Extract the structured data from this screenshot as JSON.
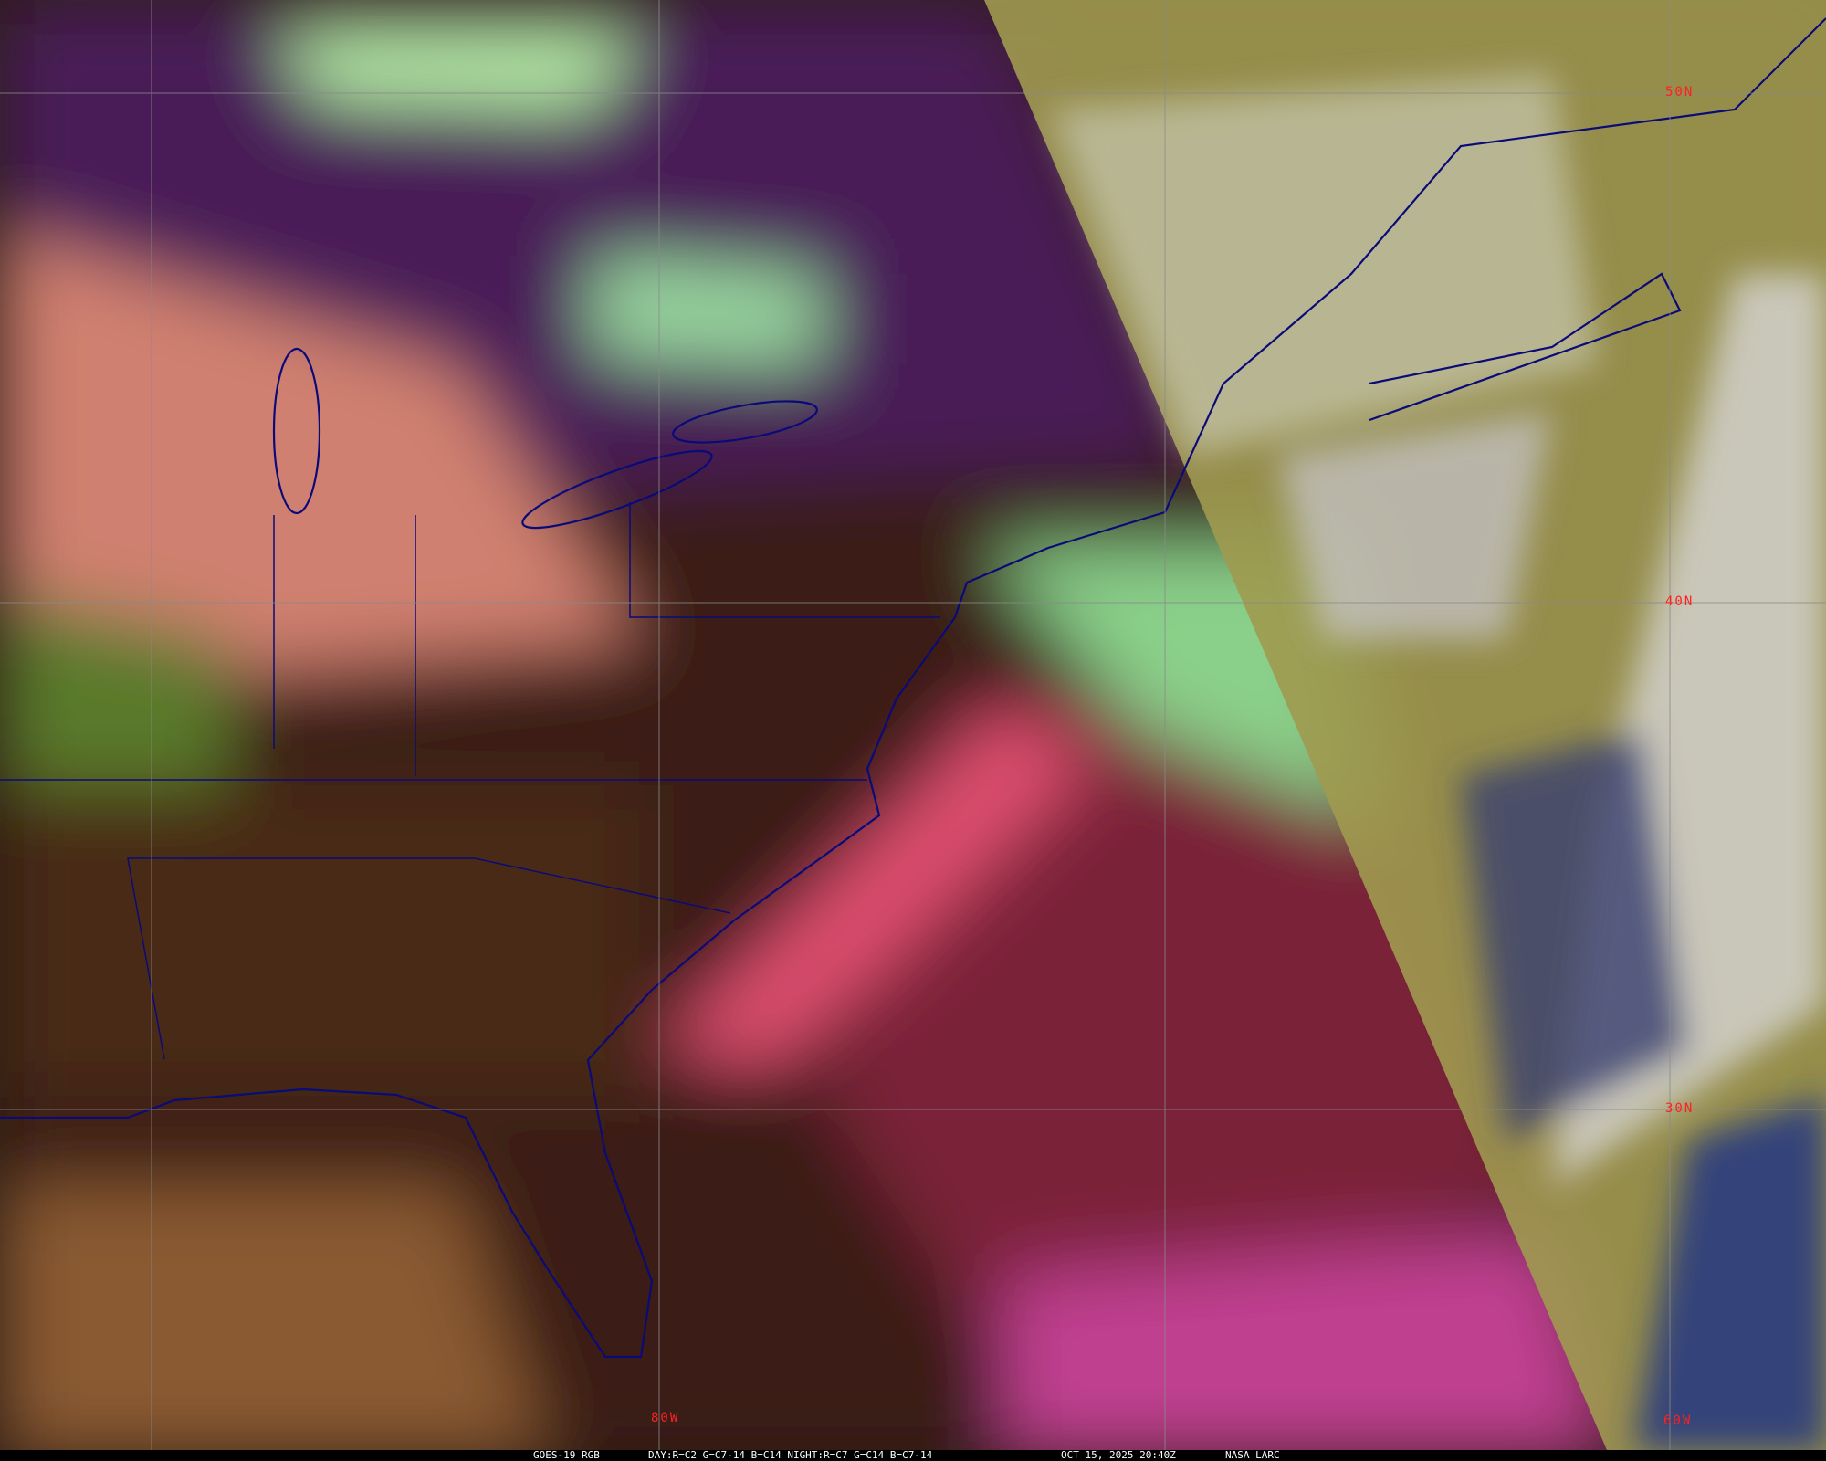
{
  "map": {
    "grid_color": "#8a8a8a",
    "border_color": "#0a0a78",
    "label_color": "#ff2020",
    "latitude_labels": [
      "50N",
      "40N",
      "30N"
    ],
    "longitude_labels": [
      "80W",
      "60W"
    ]
  },
  "caption": {
    "product": "GOES-19 RGB",
    "channels": "DAY:R=C2 G=C7-14 B=C14 NIGHT:R=C7 G=C14 B=C7-14",
    "timestamp": "OCT 15, 2025 20:40Z",
    "credit": "NASA LARC"
  }
}
